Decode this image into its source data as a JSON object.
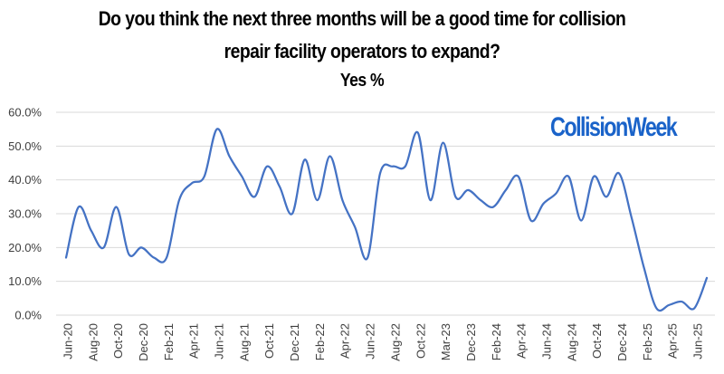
{
  "chart_data": {
    "type": "line",
    "title_line1": "Do you think the next three months will be a good time for collision",
    "title_line2": "repair facility operators to expand?",
    "subtitle": "Yes %",
    "brand": "CollisionWeek",
    "ylim": [
      0,
      60
    ],
    "y_ticks": [
      "60.0%",
      "50.0%",
      "40.0%",
      "30.0%",
      "20.0%",
      "10.0%",
      "0.0%"
    ],
    "y_tick_values": [
      60,
      50,
      40,
      30,
      20,
      10,
      0
    ],
    "x_labels": [
      "Jun-20",
      "Aug-20",
      "Oct-20",
      "Dec-20",
      "Feb-21",
      "Apr-21",
      "Jun-21",
      "Aug-21",
      "Oct-21",
      "Dec-21",
      "Feb-22",
      "Apr-22",
      "Jun-22",
      "Aug-22",
      "Oct-22",
      "Mar-23",
      "Dec-23",
      "Feb-24",
      "Apr-24",
      "Jun-24",
      "Aug-24",
      "Oct-24",
      "Dec-24",
      "Feb-25",
      "Apr-25",
      "Jun-25"
    ],
    "grid": true,
    "line_color": "#4472c4",
    "series": [
      {
        "values": [
          17,
          32,
          25,
          20,
          32,
          18,
          20,
          17,
          17,
          34,
          39,
          41,
          55,
          47,
          41,
          35,
          44,
          38,
          30,
          46,
          34,
          47,
          34,
          26,
          17,
          42,
          44,
          44,
          54,
          34,
          51,
          35,
          37,
          34,
          32,
          37,
          41,
          28,
          33,
          36,
          41,
          28,
          41,
          35,
          42,
          29,
          14,
          2,
          3,
          4,
          2,
          11
        ]
      }
    ]
  }
}
